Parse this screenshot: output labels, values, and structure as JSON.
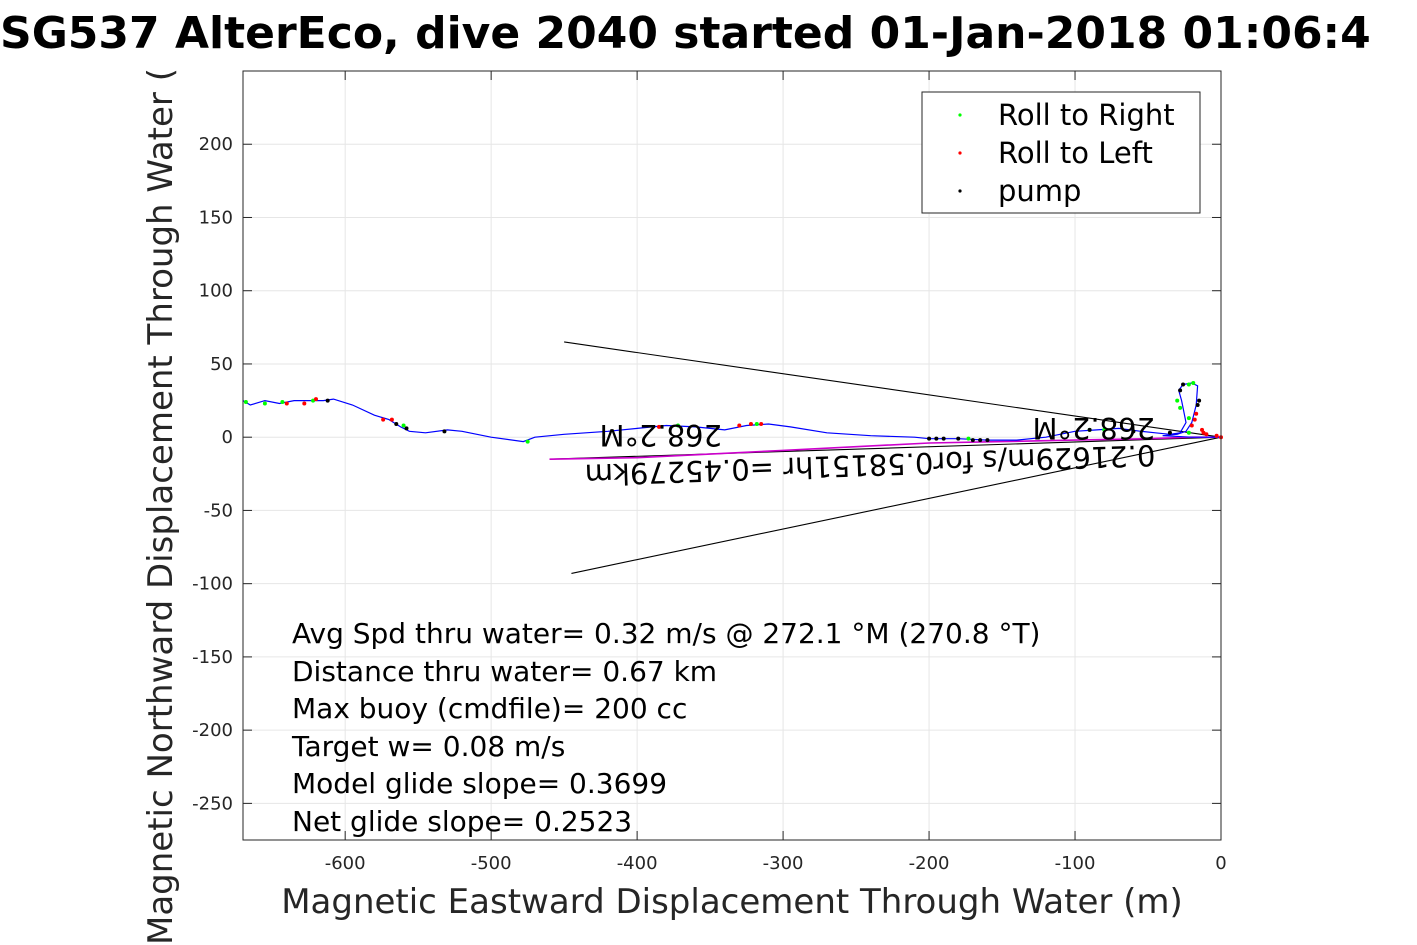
{
  "chart_data": {
    "type": "line",
    "title": "SG537 AlterEco, dive 2040 started 01-Jan-2018 01:06:4",
    "xlabel": "Magnetic Eastward Displacement Through Water (m)",
    "ylabel": "Magnetic Northward Displacement Through Water (",
    "xlim": [
      -670,
      0
    ],
    "ylim": [
      -275,
      250
    ],
    "xticks": [
      -600,
      -500,
      -400,
      -300,
      -200,
      -100,
      0
    ],
    "yticks": [
      200,
      150,
      100,
      50,
      0,
      -50,
      -100,
      -150,
      -200,
      -250
    ],
    "grid": true,
    "legend_position": "top-right",
    "legend": [
      {
        "label": "Roll to Right",
        "color": "#00ff00"
      },
      {
        "label": "Roll to Left",
        "color": "#ff0000"
      },
      {
        "label": "pump",
        "color": "#000000"
      }
    ],
    "track": {
      "name": "",
      "color": "#0000ff",
      "x": [
        -670,
        -665,
        -655,
        -645,
        -635,
        -625,
        -615,
        -608,
        -595,
        -580,
        -570,
        -562,
        -556,
        -545,
        -530,
        -520,
        -500,
        -478,
        -470,
        -450,
        -420,
        -400,
        -380,
        -360,
        -340,
        -325,
        -310,
        -295,
        -270,
        -240,
        -210,
        -200,
        -180,
        -160,
        -140,
        -120,
        -100,
        -85,
        -70,
        -55,
        -45,
        -35,
        -28,
        -24,
        -27,
        -29,
        -26,
        -20,
        -16,
        -17,
        -20,
        -24,
        -30,
        -40,
        -20,
        -10,
        -5,
        0
      ],
      "y": [
        25,
        22,
        25,
        23,
        25,
        25,
        25,
        26,
        22,
        15,
        12,
        7,
        4,
        3,
        5,
        4,
        0,
        -3,
        0,
        2,
        4,
        6,
        8,
        7,
        5,
        8,
        9,
        7,
        3,
        1,
        0,
        -1,
        -1,
        -2,
        -2,
        0,
        4,
        5,
        6,
        4,
        3,
        2,
        3,
        10,
        25,
        32,
        36,
        37,
        35,
        22,
        10,
        4,
        2,
        1,
        0,
        0,
        0,
        0
      ]
    },
    "magenta_track": {
      "name": "",
      "color": "#cc00cc",
      "x": [
        -460,
        -400,
        -300,
        -200,
        -150,
        -100,
        -50,
        -20,
        0
      ],
      "y": [
        -15,
        -14,
        -9,
        -4,
        -3,
        -2,
        -1,
        0,
        0
      ]
    },
    "roll_right_points": {
      "x": [
        -668,
        -655,
        -643,
        -622,
        -560,
        -475,
        -372,
        -318,
        -173,
        -90,
        -80,
        -30,
        -22,
        -19,
        -22,
        -28,
        -22
      ],
      "y": [
        24,
        23,
        24,
        25,
        8,
        -3,
        8,
        9,
        -1,
        5,
        5,
        25,
        36,
        37,
        13,
        20,
        3
      ]
    },
    "roll_left_points": {
      "x": [
        -640,
        -628,
        -620,
        -574,
        -568,
        -385,
        -330,
        -322,
        -315,
        -20,
        -18,
        -17,
        -13,
        -12,
        -10,
        -3,
        0
      ],
      "y": [
        23,
        23,
        26,
        12,
        12,
        7,
        8,
        9,
        9,
        8,
        12,
        16,
        5,
        3,
        2,
        1,
        0
      ]
    },
    "pump_points": {
      "x": [
        -612,
        -565,
        -558,
        -532,
        -200,
        -195,
        -190,
        -180,
        -170,
        -165,
        -160,
        -90,
        -60,
        -35,
        -28,
        -26,
        -16,
        -15
      ],
      "y": [
        25,
        9,
        6,
        4,
        -1,
        -1,
        -1,
        -1,
        -2,
        -2,
        -2,
        5,
        4,
        3,
        32,
        36,
        22,
        25
      ]
    },
    "current_lines": [
      {
        "x": [
          0,
          -450
        ],
        "y": [
          0,
          65
        ]
      },
      {
        "x": [
          0,
          -445
        ],
        "y": [
          0,
          -93
        ]
      },
      {
        "x": [
          0,
          -460
        ],
        "y": [
          0,
          -15
        ]
      }
    ],
    "annotations": [
      {
        "text": "268.2°M",
        "x": -125,
        "y": 2
      },
      {
        "text": "0.21629m/s for0.58151hr =0.45279km",
        "x": -310,
        "y": -12
      },
      {
        "text": "268.2°M",
        "x": -365,
        "y": -3
      }
    ],
    "stats": [
      "Avg Spd thru water=  0.32 m/s @ 272.1 °M (270.8 °T)",
      "Distance thru water=  0.67 km",
      "Max buoy (cmdfile)= 200 cc",
      "Target w= 0.08 m/s",
      "Model glide slope= 0.3699",
      "Net glide slope= 0.2523"
    ]
  }
}
